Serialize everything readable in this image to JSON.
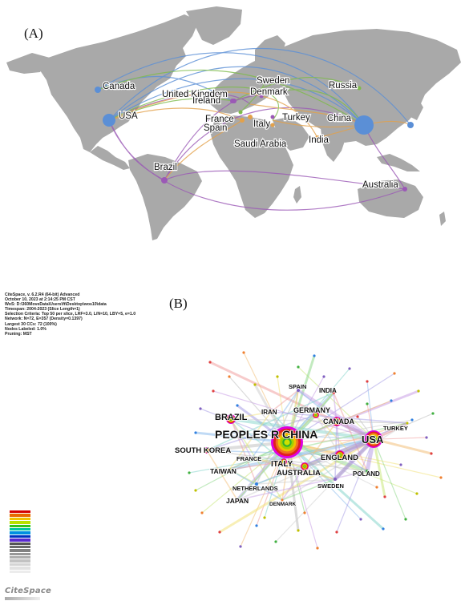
{
  "panel_a_label": "(A)",
  "panel_b_label": "(B)",
  "map": {
    "nodes": [
      {
        "name": "Canada",
        "color": "#5b8fd6",
        "r": 4
      },
      {
        "name": "USA",
        "color": "#5b8fd6",
        "r": 8
      },
      {
        "name": "United Kingdom",
        "color": "#9b59b6",
        "r": 3
      },
      {
        "name": "Ireland",
        "color": "#9b59b6",
        "r": 3
      },
      {
        "name": "Sweden",
        "color": "#7dbb4a",
        "r": 2.5
      },
      {
        "name": "Denmark",
        "color": "#9b59b6",
        "r": 2.5
      },
      {
        "name": "Russia",
        "color": "#7dbb4a",
        "r": 2.5
      },
      {
        "name": "France",
        "color": "#7dbb4a",
        "r": 2.5
      },
      {
        "name": "Spain",
        "color": "#e3a14a",
        "r": 3
      },
      {
        "name": "Italy",
        "color": "#e3a14a",
        "r": 3
      },
      {
        "name": "Turkey",
        "color": "#9b59b6",
        "r": 2.5
      },
      {
        "name": "China",
        "color": "#5b8fd6",
        "r": 12
      },
      {
        "name": "Saudi Arabia",
        "color": "#e3a14a",
        "r": 2.5
      },
      {
        "name": "India",
        "color": "#e3a14a",
        "r": 3
      },
      {
        "name": "Brazil",
        "color": "#9b59b6",
        "r": 4
      },
      {
        "name": "Australia",
        "color": "#9b59b6",
        "r": 3
      },
      {
        "name": "",
        "color": "#5b8fd6",
        "r": 4
      }
    ]
  },
  "citespace_meta": [
    "CiteSpace, v. 6.2.R4 (64-bit) Advanced",
    "October 10, 2023 at 2:14:25 PM CST",
    "WoS: D:\\360MoveData\\Users\\ft\\Desktop\\wos10\\data",
    "Timespan: 2004-2023 (Slice Length=1)",
    "Selection Criteria: Top 50 per slice, LRF=3.0, L/N=10, LBY=5, e=1.0",
    "Network: N=72, E=357 (Density=0.1397)",
    "Largest 30 CCs: 72 (100%)",
    "Nodes Labeled: 1.0%",
    "Pruning: MST"
  ],
  "network": {
    "nodes": [
      {
        "label": "PEOPLES R CHINA",
        "size": "xl"
      },
      {
        "label": "USA",
        "size": "l"
      },
      {
        "label": "BRAZIL",
        "size": "m"
      },
      {
        "label": "GERMANY",
        "size": "s"
      },
      {
        "label": "CANADA",
        "size": "s"
      },
      {
        "label": "SPAIN",
        "size": "xs"
      },
      {
        "label": "INDIA",
        "size": "xs"
      },
      {
        "label": "IRAN",
        "size": "xs"
      },
      {
        "label": "TURKEY",
        "size": "xs"
      },
      {
        "label": "SOUTH KOREA",
        "size": "s"
      },
      {
        "label": "ITALY",
        "size": "s"
      },
      {
        "label": "AUSTRALIA",
        "size": "s"
      },
      {
        "label": "ENGLAND",
        "size": "s"
      },
      {
        "label": "FRANCE",
        "size": "xs"
      },
      {
        "label": "TAIWAN",
        "size": "xs"
      },
      {
        "label": "POLAND",
        "size": "xs"
      },
      {
        "label": "NETHERLANDS",
        "size": "xs"
      },
      {
        "label": "SWEDEN",
        "size": "xs"
      },
      {
        "label": "JAPAN",
        "size": "xs"
      },
      {
        "label": "DENMARK",
        "size": "xxs"
      }
    ]
  },
  "logo": "CiteSpace"
}
